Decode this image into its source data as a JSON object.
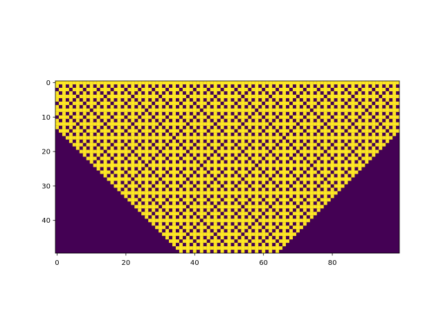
{
  "chart_data": {
    "type": "heatmap",
    "title": "",
    "xlabel": "",
    "ylabel": "",
    "rows": 50,
    "cols": 100,
    "xlim": [
      -0.5,
      99.5
    ],
    "ylim": [
      49.5,
      -0.5
    ],
    "xticks": [
      0,
      20,
      40,
      60,
      80
    ],
    "yticks": [
      0,
      10,
      20,
      30,
      40
    ],
    "colormap": "viridis",
    "values": [
      0,
      1
    ],
    "colors": {
      "off": "#440154",
      "on": "#fde725",
      "axis": "#000000",
      "background": "#ffffff"
    },
    "rule": "2D cellular automaton: a cell turns on when exactly one of its 4 orthogonal neighbours is on (seed: single cell at row 0, col 50)",
    "seed": {
      "row": 0,
      "col": 50
    },
    "grid": false,
    "legend": "none"
  }
}
